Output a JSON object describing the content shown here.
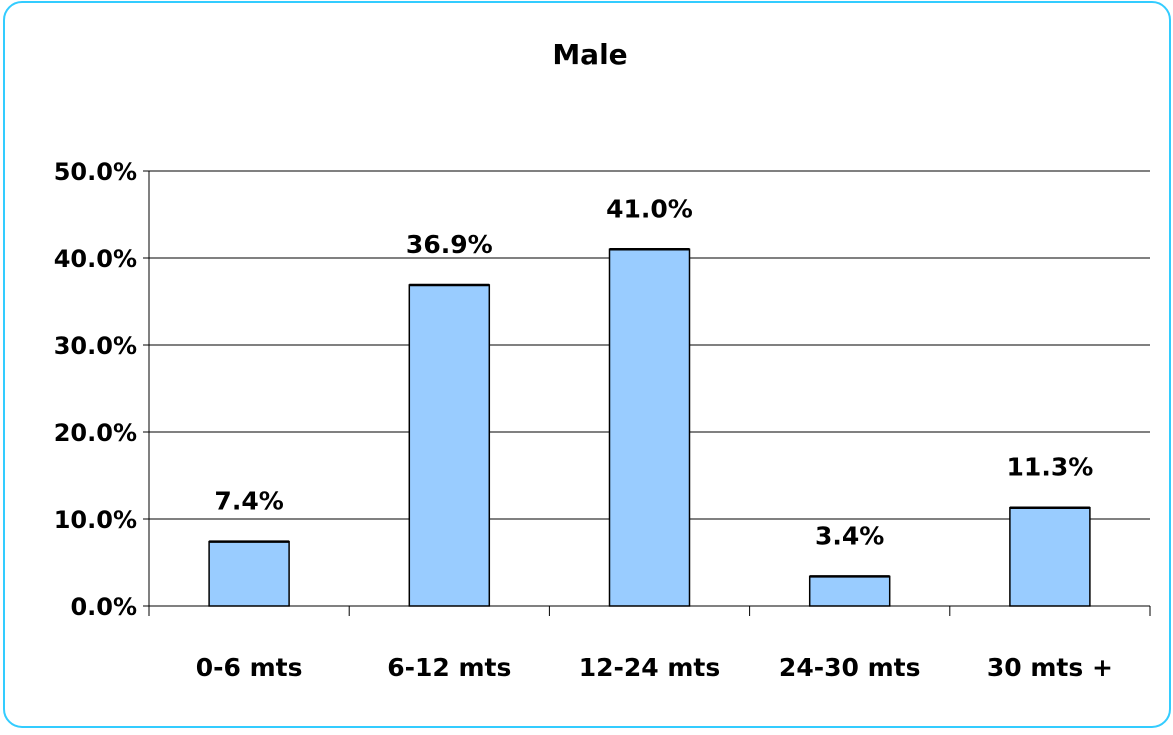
{
  "chart_data": {
    "type": "bar",
    "title": "Male",
    "categories": [
      "0-6 mts",
      "6-12 mts",
      "12-24 mts",
      "24-30 mts",
      "30 mts +"
    ],
    "values": [
      7.4,
      36.9,
      41.0,
      3.4,
      11.3
    ],
    "data_labels": [
      "7.4%",
      "36.9%",
      "41.0%",
      "3.4%",
      "11.3%"
    ],
    "y_ticks": [
      0,
      10,
      20,
      30,
      40,
      50
    ],
    "y_tick_labels": [
      "0.0%",
      "10.0%",
      "20.0%",
      "30.0%",
      "40.0%",
      "50.0%"
    ],
    "ylim": [
      0,
      50
    ],
    "xlabel": "",
    "ylabel": "",
    "grid": true,
    "legend": "none",
    "colors": {
      "bar_fill": "#99ccff",
      "bar_stroke": "#000000",
      "frame_border": "#33ccff",
      "gridline": "#000000"
    }
  }
}
